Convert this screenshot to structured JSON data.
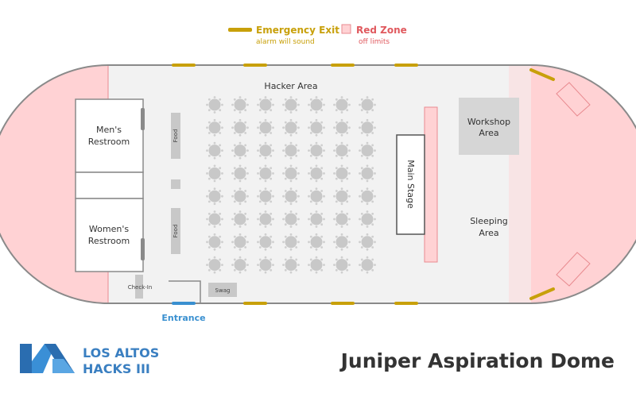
{
  "legend": {
    "exit_title": "Emergency Exit",
    "exit_subtitle": "alarm will sound",
    "red_title": "Red Zone",
    "red_subtitle": "off limits"
  },
  "colors": {
    "exit": "#c8a00a",
    "red_zone_fill": "#ffd2d4",
    "red_zone_stroke": "#e98b90",
    "red_text": "#e0595e",
    "entrance": "#3a90d0",
    "floor": "#f2f2f2",
    "wall": "#8a8a8a",
    "table": "#c8c8c8",
    "brand": "#3a7fc1"
  },
  "areas": {
    "hacker_area": "Hacker Area",
    "mens_line1": "Men's",
    "mens_line2": "Restroom",
    "womens_line1": "Women's",
    "womens_line2": "Restroom",
    "food_top": "Food",
    "food_bottom": "Food",
    "check_in": "Check-In",
    "swag": "Swag",
    "main_stage": "Main Stage",
    "workshop_line1": "Workshop",
    "workshop_line2": "Area",
    "sleeping_line1": "Sleeping",
    "sleeping_line2": "Area",
    "entrance": "Entrance"
  },
  "hacker_tables": {
    "columns": 7,
    "rows": 8
  },
  "brand": {
    "line1": "LOS ALTOS",
    "line2": "HACKS III",
    "logo_icon": "la-logo-icon"
  },
  "venue_title": "Juniper Aspiration Dome"
}
